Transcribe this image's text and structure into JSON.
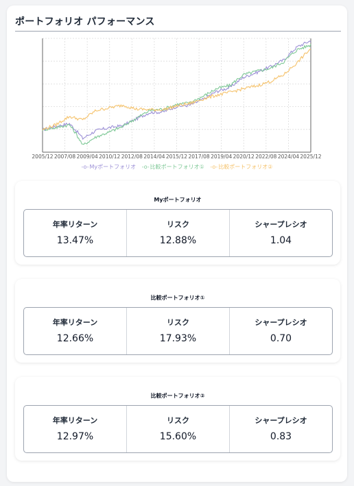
{
  "page": {
    "title": "ポートフォリオ パフォーマンス"
  },
  "chart_data": {
    "type": "line",
    "title": "",
    "xlabel": "",
    "ylabel": "",
    "grid": true,
    "legend_placement": "bottom-center",
    "x_ticks": [
      "2005/12",
      "2007/08",
      "2009/04",
      "2010/12",
      "2012/08",
      "2014/04",
      "2015/12",
      "2017/08",
      "2019/04",
      "2020/12",
      "2022/08",
      "2024/04",
      "2025/12"
    ],
    "series": [
      {
        "name": "Myポートフォリオ",
        "color": "#9b8fd6",
        "values": [
          1.0,
          1.08,
          1.15,
          0.82,
          0.98,
          1.05,
          1.1,
          1.28,
          1.48,
          1.5,
          1.7,
          1.75,
          2.0,
          2.4,
          2.62,
          3.3,
          3.7,
          4.2,
          4.9,
          6.6,
          7.6
        ]
      },
      {
        "name": "比較ポートフォリオ①",
        "color": "#7ec896",
        "values": [
          1.0,
          1.05,
          1.12,
          0.7,
          0.85,
          0.95,
          1.08,
          1.3,
          1.55,
          1.6,
          1.78,
          1.85,
          2.15,
          2.55,
          2.75,
          3.5,
          3.8,
          4.05,
          4.7,
          6.2,
          6.9
        ]
      },
      {
        "name": "比較ポートフォリオ②",
        "color": "#f5c26b",
        "values": [
          1.0,
          1.12,
          1.35,
          1.25,
          1.55,
          1.65,
          1.75,
          1.6,
          1.58,
          1.58,
          1.72,
          1.82,
          2.02,
          2.2,
          2.35,
          2.55,
          2.72,
          3.0,
          3.5,
          4.6,
          6.3
        ]
      }
    ],
    "ylim": [
      0.6,
      8.0
    ]
  },
  "legend": {
    "items": [
      {
        "label": "Myポートフォリオ",
        "color": "#9b8fd6",
        "marker": "-o-"
      },
      {
        "label": "比較ポートフォリオ①",
        "color": "#7ec896",
        "marker": "-o-"
      },
      {
        "label": "比較ポートフォリオ②",
        "color": "#f5c26b",
        "marker": "-o-"
      }
    ]
  },
  "metrics": [
    {
      "heading": "Myポートフォリオ",
      "annual_return_label": "年率リターン",
      "annual_return": "13.47%",
      "risk_label": "リスク",
      "risk": "12.88%",
      "sharpe_label": "シャープレシオ",
      "sharpe": "1.04"
    },
    {
      "heading": "比較ポートフォリオ①",
      "annual_return_label": "年率リターン",
      "annual_return": "12.66%",
      "risk_label": "リスク",
      "risk": "17.93%",
      "sharpe_label": "シャープレシオ",
      "sharpe": "0.70"
    },
    {
      "heading": "比較ポートフォリオ②",
      "annual_return_label": "年率リターン",
      "annual_return": "12.97%",
      "risk_label": "リスク",
      "risk": "15.60%",
      "sharpe_label": "シャープレシオ",
      "sharpe": "0.83"
    }
  ]
}
